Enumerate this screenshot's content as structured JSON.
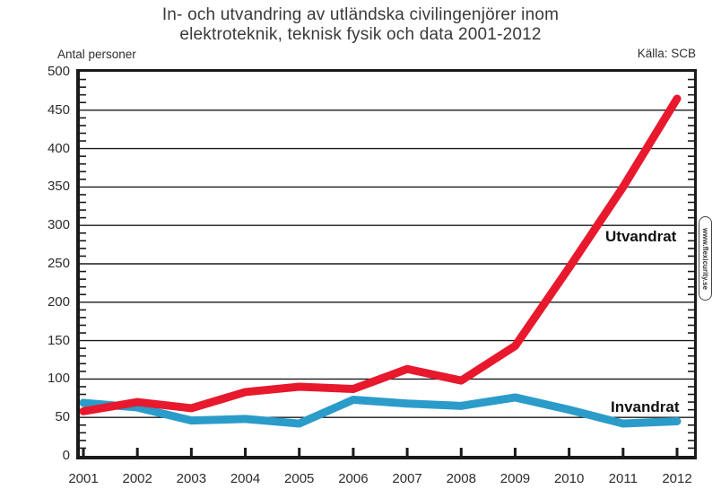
{
  "title_line1": "In- och utvandring av utländska civilingenjörer inom",
  "title_line2": "elektroteknik, teknisk fysik och data 2001-2012",
  "source": "Källa: SCB",
  "watermark": "www.flexicurity.se",
  "colors": {
    "utvandrat": "#e8182d",
    "invandrat": "#2b9cca",
    "axis": "#1a1a1a",
    "grid": "#1a1a1a"
  },
  "chart_data": {
    "type": "line",
    "title": "In- och utvandring av utländska civilingenjörer inom elektroteknik, teknisk fysik och data 2001-2012",
    "ylabel": "Antal personer",
    "xlabel": "",
    "source": "Källa: SCB",
    "x": [
      2001,
      2002,
      2003,
      2004,
      2005,
      2006,
      2007,
      2008,
      2009,
      2010,
      2011,
      2012
    ],
    "series": [
      {
        "name": "Utvandrat",
        "color": "#e8182d",
        "values": [
          58,
          70,
          62,
          83,
          90,
          87,
          113,
          98,
          143,
          245,
          350,
          465
        ]
      },
      {
        "name": "Invandrat",
        "color": "#2b9cca",
        "values": [
          69,
          63,
          46,
          48,
          42,
          73,
          68,
          65,
          76,
          60,
          42,
          45
        ]
      }
    ],
    "ylim": [
      0,
      500
    ],
    "ytick_step": 50,
    "y_minor_tick_step": 10,
    "grid": "horizontal",
    "legend_position": "inline-labels"
  }
}
